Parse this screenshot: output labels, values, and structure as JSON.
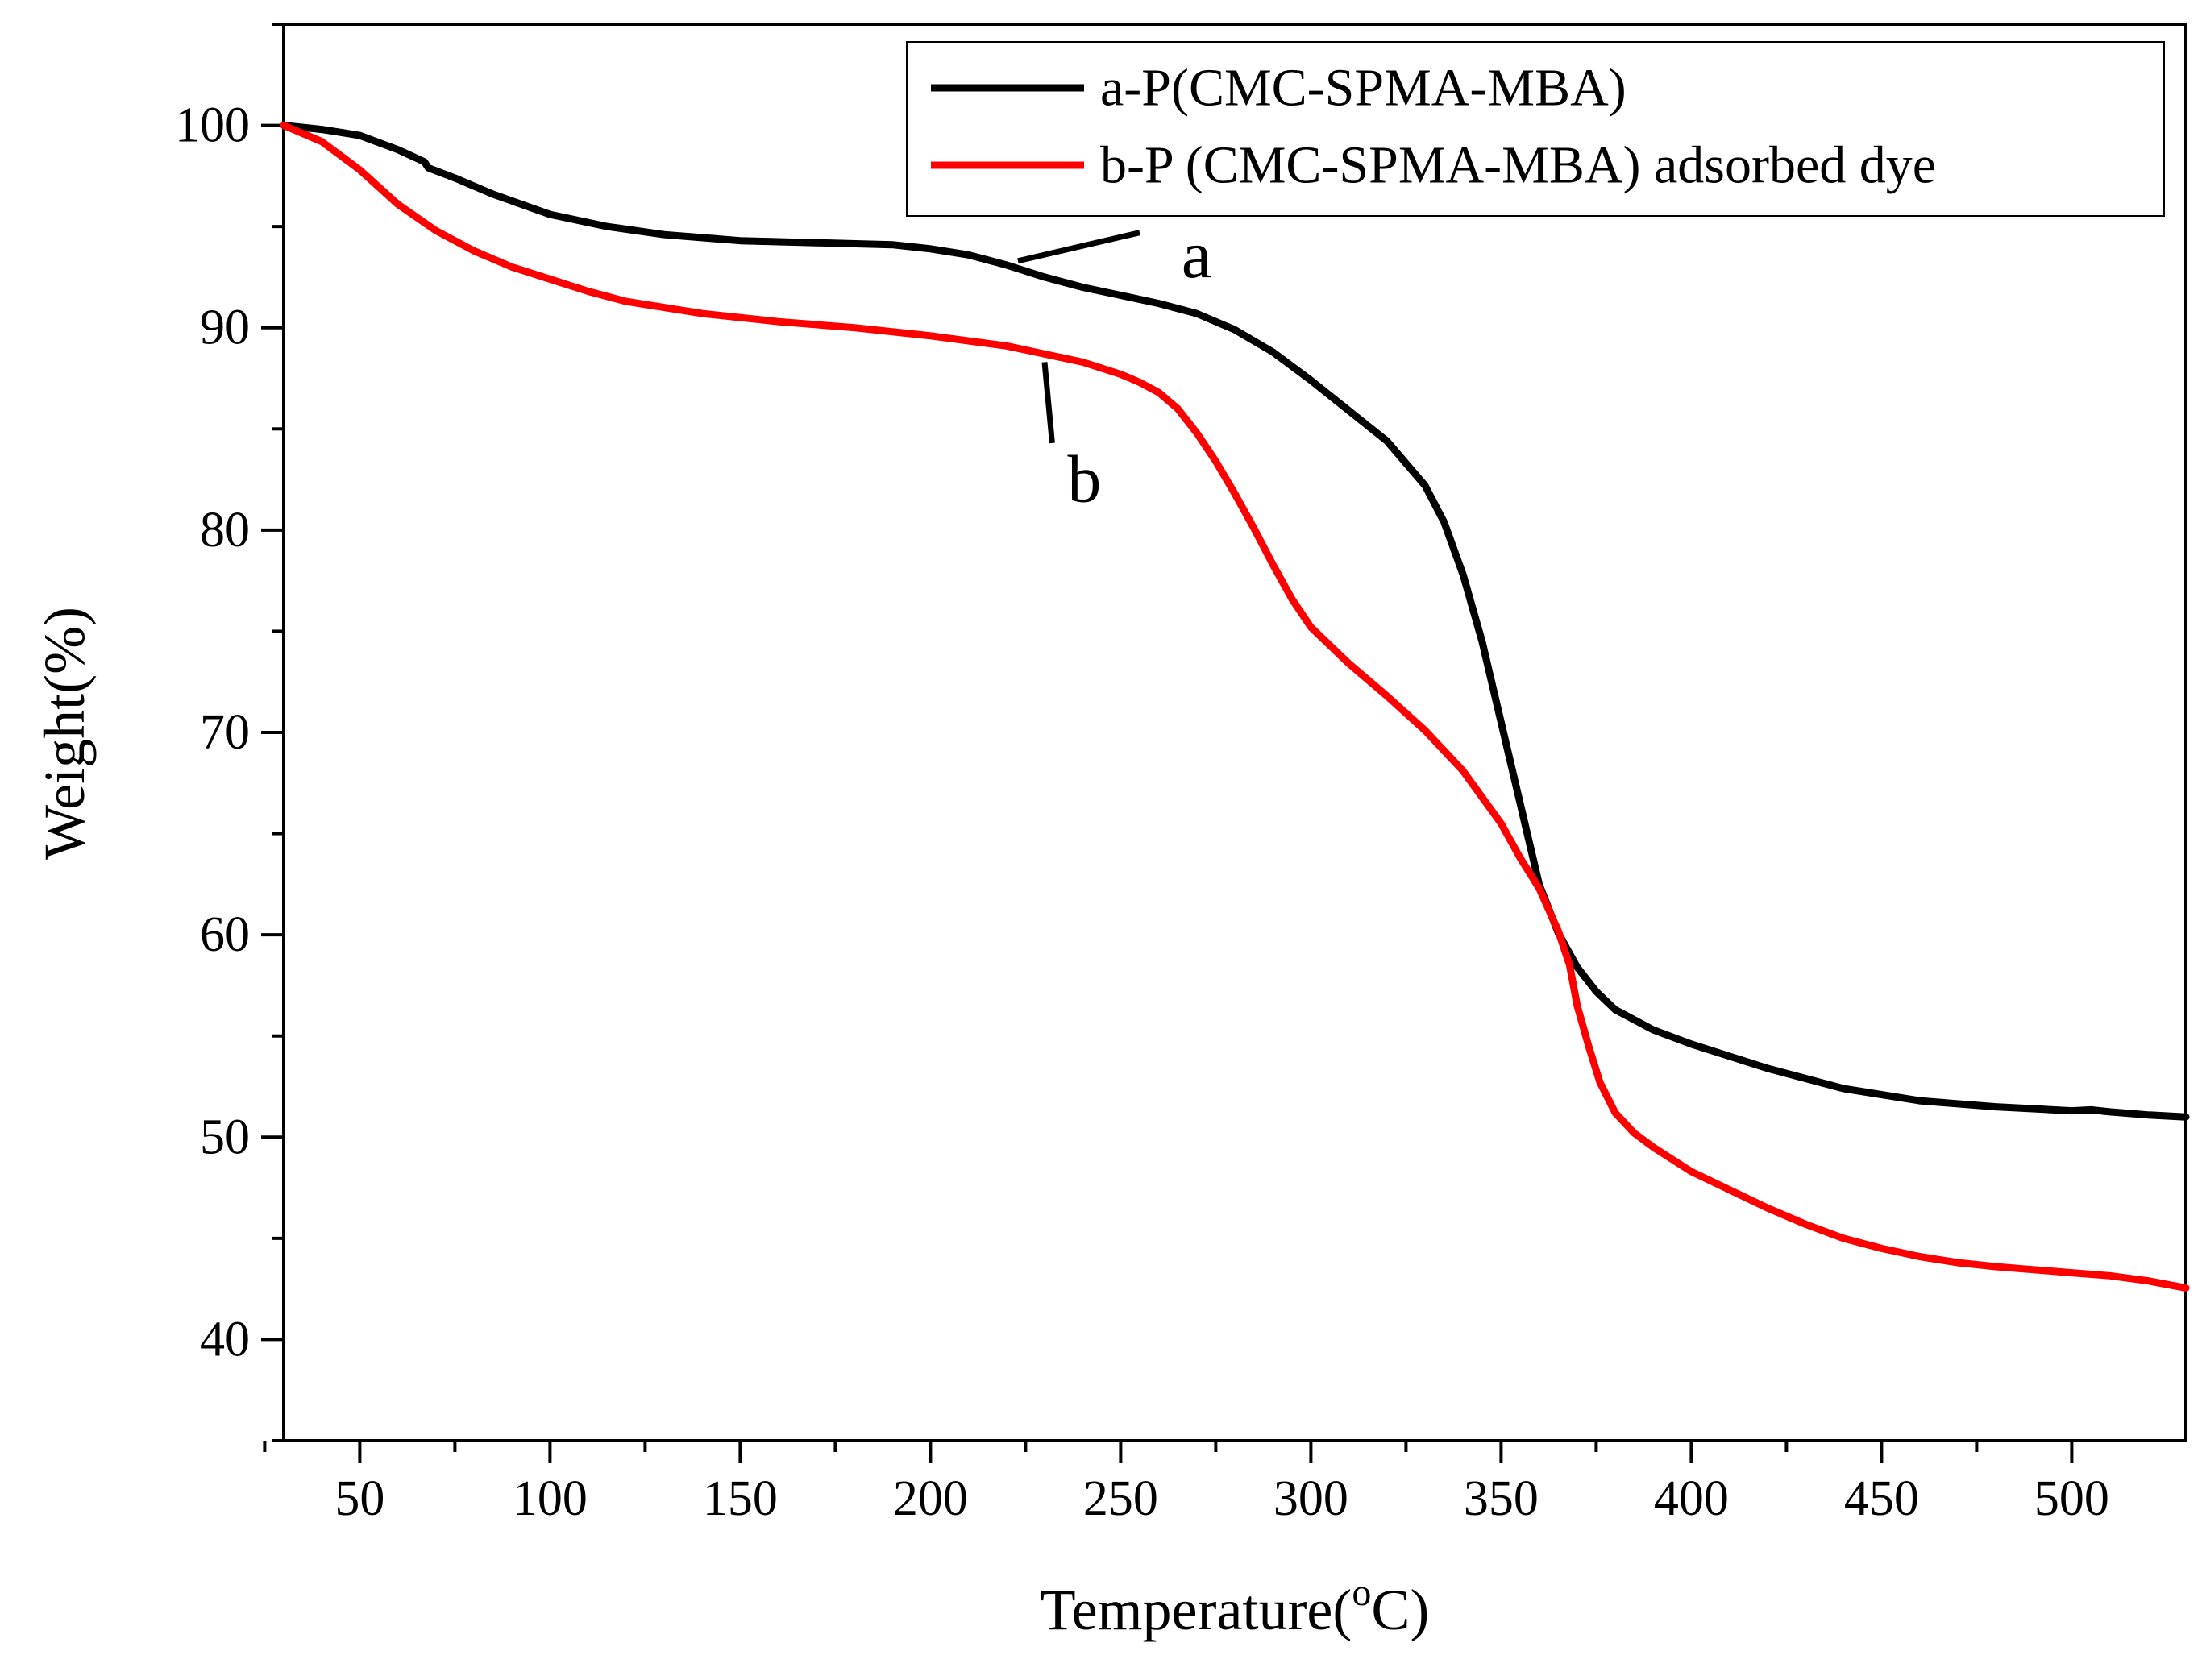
{
  "chart_data": {
    "type": "line",
    "title": "",
    "xlabel": "Temperature(",
    "xlabel_sup": "o",
    "xlabel_suffix": "C)",
    "ylabel": "Weight(%)",
    "xlim": [
      30,
      530
    ],
    "ylim": [
      35,
      105
    ],
    "x_ticks": [
      50,
      100,
      150,
      200,
      250,
      300,
      350,
      400,
      450,
      500
    ],
    "y_ticks": [
      40,
      50,
      60,
      70,
      80,
      90,
      100
    ],
    "grid": false,
    "legend_position": "top-right",
    "series": [
      {
        "name": "a-P(CMC-SPMA-MBA)",
        "color": "#000000",
        "points": [
          [
            30,
            100
          ],
          [
            40,
            99.8
          ],
          [
            50,
            99.5
          ],
          [
            60,
            98.8
          ],
          [
            67,
            98.2
          ],
          [
            68,
            97.9
          ],
          [
            75,
            97.4
          ],
          [
            85,
            96.6
          ],
          [
            100,
            95.6
          ],
          [
            115,
            95
          ],
          [
            130,
            94.6
          ],
          [
            150,
            94.3
          ],
          [
            170,
            94.2
          ],
          [
            190,
            94.1
          ],
          [
            200,
            93.9
          ],
          [
            210,
            93.6
          ],
          [
            220,
            93.1
          ],
          [
            230,
            92.5
          ],
          [
            240,
            92
          ],
          [
            250,
            91.6
          ],
          [
            260,
            91.2
          ],
          [
            270,
            90.7
          ],
          [
            280,
            89.9
          ],
          [
            290,
            88.8
          ],
          [
            300,
            87.4
          ],
          [
            310,
            85.9
          ],
          [
            320,
            84.4
          ],
          [
            330,
            82.2
          ],
          [
            335,
            80.4
          ],
          [
            340,
            77.8
          ],
          [
            345,
            74.5
          ],
          [
            350,
            70.5
          ],
          [
            355,
            66.5
          ],
          [
            360,
            62.5
          ],
          [
            365,
            60.1
          ],
          [
            370,
            58.4
          ],
          [
            375,
            57.2
          ],
          [
            380,
            56.3
          ],
          [
            390,
            55.3
          ],
          [
            400,
            54.6
          ],
          [
            420,
            53.4
          ],
          [
            440,
            52.4
          ],
          [
            460,
            51.8
          ],
          [
            480,
            51.5
          ],
          [
            500,
            51.3
          ],
          [
            505,
            51.35
          ],
          [
            510,
            51.25
          ],
          [
            520,
            51.1
          ],
          [
            530,
            51
          ]
        ]
      },
      {
        "name": "b-P (CMC-SPMA-MBA) adsorbed dye",
        "color": "#ff0000",
        "points": [
          [
            30,
            100
          ],
          [
            40,
            99.2
          ],
          [
            50,
            97.8
          ],
          [
            60,
            96.1
          ],
          [
            70,
            94.8
          ],
          [
            80,
            93.8
          ],
          [
            90,
            93
          ],
          [
            100,
            92.4
          ],
          [
            110,
            91.8
          ],
          [
            120,
            91.3
          ],
          [
            140,
            90.7
          ],
          [
            160,
            90.3
          ],
          [
            180,
            90
          ],
          [
            200,
            89.6
          ],
          [
            220,
            89.1
          ],
          [
            240,
            88.3
          ],
          [
            250,
            87.7
          ],
          [
            255,
            87.3
          ],
          [
            260,
            86.8
          ],
          [
            265,
            86
          ],
          [
            270,
            84.8
          ],
          [
            275,
            83.4
          ],
          [
            280,
            81.8
          ],
          [
            285,
            80.1
          ],
          [
            290,
            78.3
          ],
          [
            295,
            76.6
          ],
          [
            300,
            75.2
          ],
          [
            310,
            73.4
          ],
          [
            320,
            71.8
          ],
          [
            330,
            70.1
          ],
          [
            340,
            68.1
          ],
          [
            350,
            65.5
          ],
          [
            355,
            63.8
          ],
          [
            360,
            62.3
          ],
          [
            365,
            60.2
          ],
          [
            368,
            58.5
          ],
          [
            370,
            56.5
          ],
          [
            373,
            54.5
          ],
          [
            376,
            52.7
          ],
          [
            380,
            51.2
          ],
          [
            385,
            50.2
          ],
          [
            390,
            49.5
          ],
          [
            400,
            48.3
          ],
          [
            410,
            47.4
          ],
          [
            420,
            46.5
          ],
          [
            430,
            45.7
          ],
          [
            440,
            45
          ],
          [
            450,
            44.5
          ],
          [
            460,
            44.1
          ],
          [
            470,
            43.8
          ],
          [
            480,
            43.6
          ],
          [
            490,
            43.45
          ],
          [
            500,
            43.3
          ],
          [
            510,
            43.15
          ],
          [
            520,
            42.9
          ],
          [
            530,
            42.55
          ]
        ]
      }
    ],
    "annotations": [
      {
        "label": "a",
        "line_from": [
          223,
          93.3
        ],
        "line_to": [
          255,
          94.7
        ],
        "text_at": [
          266,
          93.6
        ]
      },
      {
        "label": "b",
        "line_from": [
          230,
          88.3
        ],
        "line_to": [
          232,
          84.3
        ],
        "text_at": [
          236,
          82.5
        ]
      }
    ]
  }
}
